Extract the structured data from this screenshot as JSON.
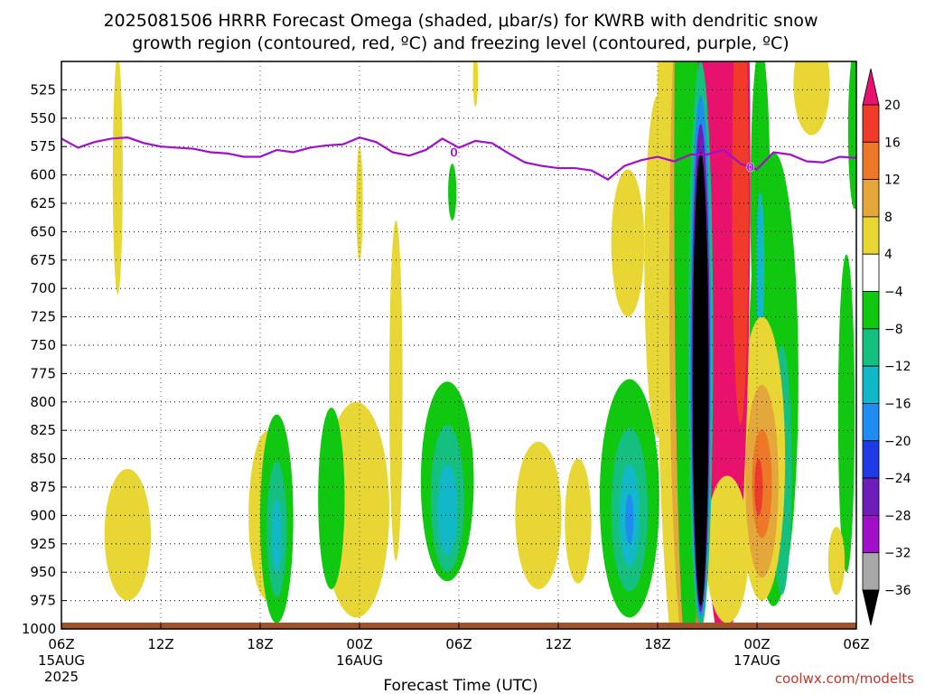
{
  "chart_data": {
    "type": "heatmap",
    "title_line1": "2025081506 HRRR Forecast Omega (shaded, μbar/s) for KWRB with dendritic snow",
    "title_line2": "growth region (contoured, red, ºC) and freezing level (contoured, purple, ºC)",
    "xlabel": "Forecast Time (UTC)",
    "credit": "coolwx.com/modelts",
    "x_ticks": [
      {
        "hour": 0,
        "label": "06Z",
        "sub1": "15AUG",
        "sub2": "2025"
      },
      {
        "hour": 6,
        "label": "12Z",
        "sub1": "",
        "sub2": ""
      },
      {
        "hour": 12,
        "label": "18Z",
        "sub1": "",
        "sub2": ""
      },
      {
        "hour": 18,
        "label": "00Z",
        "sub1": "16AUG",
        "sub2": ""
      },
      {
        "hour": 24,
        "label": "06Z",
        "sub1": "",
        "sub2": ""
      },
      {
        "hour": 30,
        "label": "12Z",
        "sub1": "",
        "sub2": ""
      },
      {
        "hour": 36,
        "label": "18Z",
        "sub1": "",
        "sub2": ""
      },
      {
        "hour": 42,
        "label": "00Z",
        "sub1": "17AUG",
        "sub2": ""
      },
      {
        "hour": 48,
        "label": "06Z",
        "sub1": "",
        "sub2": ""
      }
    ],
    "y_ticks": [
      525,
      550,
      575,
      600,
      625,
      650,
      675,
      700,
      725,
      750,
      775,
      800,
      825,
      850,
      875,
      900,
      925,
      950,
      975,
      1000
    ],
    "y_tick_labels": [
      "525",
      "550",
      "575",
      "600",
      "625",
      "650",
      "675",
      "700",
      "725",
      "750",
      "775",
      "800",
      "825",
      "850",
      "875",
      "900",
      "925",
      "950",
      "975",
      "1000"
    ],
    "ylim": [
      500,
      1000
    ],
    "xlim": [
      0,
      48
    ],
    "colorbar": {
      "labels": [
        "20",
        "16",
        "12",
        "8",
        "4",
        "−4",
        "−8",
        "−12",
        "−16",
        "−20",
        "−24",
        "−28",
        "−32",
        "−36"
      ],
      "bins": [
        {
          "lo": 20,
          "hi": 24,
          "color": "#e8116e"
        },
        {
          "lo": 16,
          "hi": 20,
          "color": "#f03a2a"
        },
        {
          "lo": 12,
          "hi": 16,
          "color": "#ec7828"
        },
        {
          "lo": 8,
          "hi": 12,
          "color": "#e4a83a"
        },
        {
          "lo": 4,
          "hi": 8,
          "color": "#e8d634"
        },
        {
          "lo": -4,
          "hi": 4,
          "color": "#ffffff"
        },
        {
          "lo": -8,
          "hi": -4,
          "color": "#10c810"
        },
        {
          "lo": -12,
          "hi": -8,
          "color": "#14bf80"
        },
        {
          "lo": -16,
          "hi": -12,
          "color": "#12b8c8"
        },
        {
          "lo": -20,
          "hi": -16,
          "color": "#1e8cf0"
        },
        {
          "lo": -24,
          "hi": -20,
          "color": "#1e3ce6"
        },
        {
          "lo": -28,
          "hi": -24,
          "color": "#6e1eb8"
        },
        {
          "lo": -32,
          "hi": -28,
          "color": "#a010c8"
        },
        {
          "lo": -36,
          "hi": -32,
          "color": "#a8a8a8"
        },
        {
          "lo": -40,
          "hi": -36,
          "color": "#000000"
        }
      ]
    },
    "freezing_level": {
      "color": "#a010c8",
      "label": "0",
      "label_points": [
        {
          "hour": 23.7,
          "p": 580
        },
        {
          "hour": 41.6,
          "p": 593
        }
      ],
      "points": [
        [
          0,
          568
        ],
        [
          1,
          576
        ],
        [
          2,
          571
        ],
        [
          3,
          568
        ],
        [
          4,
          567
        ],
        [
          5,
          572
        ],
        [
          6,
          575
        ],
        [
          7,
          576
        ],
        [
          8,
          577
        ],
        [
          9,
          580
        ],
        [
          10,
          581
        ],
        [
          11,
          584
        ],
        [
          12,
          584
        ],
        [
          13,
          578
        ],
        [
          14,
          580
        ],
        [
          15,
          576
        ],
        [
          16,
          574
        ],
        [
          17,
          573
        ],
        [
          18,
          567
        ],
        [
          19,
          571
        ],
        [
          20,
          580
        ],
        [
          21,
          583
        ],
        [
          22,
          578
        ],
        [
          23,
          568
        ],
        [
          24,
          576
        ],
        [
          25,
          570
        ],
        [
          26,
          572
        ],
        [
          27,
          581
        ],
        [
          28,
          589
        ],
        [
          29,
          592
        ],
        [
          30,
          594
        ],
        [
          31,
          594
        ],
        [
          32,
          596
        ],
        [
          33,
          604
        ],
        [
          34,
          592
        ],
        [
          35,
          587
        ],
        [
          36,
          584
        ],
        [
          37,
          588
        ],
        [
          38,
          582
        ],
        [
          39,
          582
        ],
        [
          40,
          578
        ],
        [
          41,
          590
        ],
        [
          42,
          595
        ],
        [
          43,
          580
        ],
        [
          44,
          582
        ],
        [
          45,
          588
        ],
        [
          46,
          589
        ],
        [
          47,
          584
        ],
        [
          48,
          585
        ]
      ]
    },
    "omega_regions": [
      {
        "color": "#e8d634",
        "cx": 3.4,
        "cy": 600,
        "rx": 0.3,
        "ry": 105
      },
      {
        "color": "#e8d634",
        "cx": 18.0,
        "cy": 625,
        "rx": 0.2,
        "ry": 50
      },
      {
        "color": "#e8d634",
        "cx": 25.0,
        "cy": 515,
        "rx": 0.15,
        "ry": 25
      },
      {
        "color": "#10c810",
        "cx": 23.6,
        "cy": 615,
        "rx": 0.25,
        "ry": 25
      },
      {
        "color": "#e8d634",
        "cx": 4.0,
        "cy": 917,
        "rx": 1.4,
        "ry": 58
      },
      {
        "color": "#e8d634",
        "cx": 12.5,
        "cy": 900,
        "rx": 1.2,
        "ry": 75
      },
      {
        "color": "#e8d634",
        "cx": 17.8,
        "cy": 895,
        "rx": 2.0,
        "ry": 95
      },
      {
        "color": "#e8d634",
        "cx": 20.2,
        "cy": 790,
        "rx": 0.4,
        "ry": 150
      },
      {
        "color": "#e8d634",
        "cx": 28.8,
        "cy": 900,
        "rx": 1.4,
        "ry": 65
      },
      {
        "color": "#e8d634",
        "cx": 31.2,
        "cy": 905,
        "rx": 0.8,
        "ry": 55
      },
      {
        "color": "#e8d634",
        "cx": 34.2,
        "cy": 660,
        "rx": 1.0,
        "ry": 65
      },
      {
        "color": "#e8d634",
        "cx": 36.0,
        "cy": 680,
        "rx": 0.8,
        "ry": 150
      },
      {
        "color": "#e8d634",
        "cx": 45.3,
        "cy": 520,
        "rx": 1.1,
        "ry": 45
      },
      {
        "color": "#10c810",
        "cx": 13.0,
        "cy": 903,
        "rx": 1.0,
        "ry": 92
      },
      {
        "color": "#14bf80",
        "cx": 13.0,
        "cy": 912,
        "rx": 0.6,
        "ry": 60
      },
      {
        "color": "#12b8c8",
        "cx": 13.0,
        "cy": 918,
        "rx": 0.3,
        "ry": 32
      },
      {
        "color": "#10c810",
        "cx": 16.3,
        "cy": 885,
        "rx": 0.8,
        "ry": 80
      },
      {
        "color": "#10c810",
        "cx": 23.3,
        "cy": 870,
        "rx": 1.6,
        "ry": 88
      },
      {
        "color": "#14bf80",
        "cx": 23.3,
        "cy": 885,
        "rx": 1.0,
        "ry": 65
      },
      {
        "color": "#12b8c8",
        "cx": 23.3,
        "cy": 895,
        "rx": 0.6,
        "ry": 40
      },
      {
        "color": "#10c810",
        "cx": 34.3,
        "cy": 885,
        "rx": 1.8,
        "ry": 105
      },
      {
        "color": "#14bf80",
        "cx": 34.3,
        "cy": 895,
        "rx": 1.1,
        "ry": 72
      },
      {
        "color": "#12b8c8",
        "cx": 34.3,
        "cy": 900,
        "rx": 0.6,
        "ry": 45
      },
      {
        "color": "#1e8cf0",
        "cx": 34.3,
        "cy": 903,
        "rx": 0.25,
        "ry": 22
      },
      {
        "color": "#10c810",
        "cx": 38.6,
        "cy": 500,
        "rx": 1.2,
        "ry": 230
      },
      {
        "color": "#10c810",
        "cx": 43.0,
        "cy": 780,
        "rx": 1.5,
        "ry": 200
      },
      {
        "color": "#14bf80",
        "cx": 43.5,
        "cy": 860,
        "rx": 0.6,
        "ry": 110
      },
      {
        "color": "#10c810",
        "cx": 42.2,
        "cy": 625,
        "rx": 0.6,
        "ry": 140
      },
      {
        "color": "#12b8c8",
        "cx": 42.2,
        "cy": 680,
        "rx": 0.25,
        "ry": 65
      },
      {
        "color": "#10c810",
        "cx": 47.4,
        "cy": 810,
        "rx": 0.5,
        "ry": 140
      },
      {
        "color": "#10c810",
        "cx": 47.9,
        "cy": 560,
        "rx": 0.4,
        "ry": 70
      },
      {
        "color": "#e8d634",
        "cx": 46.8,
        "cy": 940,
        "rx": 0.5,
        "ry": 30
      },
      {
        "color": "#e8d634",
        "cx": 42.3,
        "cy": 850,
        "rx": 1.4,
        "ry": 125
      },
      {
        "color": "#e4a83a",
        "cx": 42.3,
        "cy": 870,
        "rx": 1.0,
        "ry": 85
      },
      {
        "color": "#ec7828",
        "cx": 42.3,
        "cy": 872,
        "rx": 0.6,
        "ry": 48
      },
      {
        "color": "#f03a2a",
        "cx": 42.1,
        "cy": 875,
        "rx": 0.25,
        "ry": 25
      },
      {
        "color": "#e8d634",
        "cx": 37.5,
        "cy": 650,
        "rx": 1.6,
        "ry": 400
      },
      {
        "color": "#e4a83a",
        "cx": 37.8,
        "cy": 700,
        "rx": 1.1,
        "ry": 330
      },
      {
        "color": "#ec7828",
        "cx": 38.2,
        "cy": 720,
        "rx": 0.7,
        "ry": 290
      },
      {
        "color": "#10c810",
        "cx": 37.9,
        "cy": 600,
        "rx": 0.9,
        "ry": 440
      },
      {
        "color": "#e8116e",
        "cx": 40.0,
        "cy": 600,
        "rx": 1.6,
        "ry": 420
      },
      {
        "color": "#f03a2a",
        "cx": 41.0,
        "cy": 620,
        "rx": 0.5,
        "ry": 200
      },
      {
        "color": "#e8d634",
        "cx": 40.2,
        "cy": 930,
        "rx": 1.3,
        "ry": 65
      },
      {
        "color": "#14bf80",
        "cx": 38.6,
        "cy": 750,
        "rx": 0.75,
        "ry": 250
      },
      {
        "color": "#1e8cf0",
        "cx": 38.6,
        "cy": 760,
        "rx": 0.62,
        "ry": 230
      },
      {
        "color": "#6e1eb8",
        "cx": 38.6,
        "cy": 770,
        "rx": 0.55,
        "ry": 215
      },
      {
        "color": "#000000",
        "cx": 38.6,
        "cy": 780,
        "rx": 0.48,
        "ry": 200
      }
    ]
  }
}
